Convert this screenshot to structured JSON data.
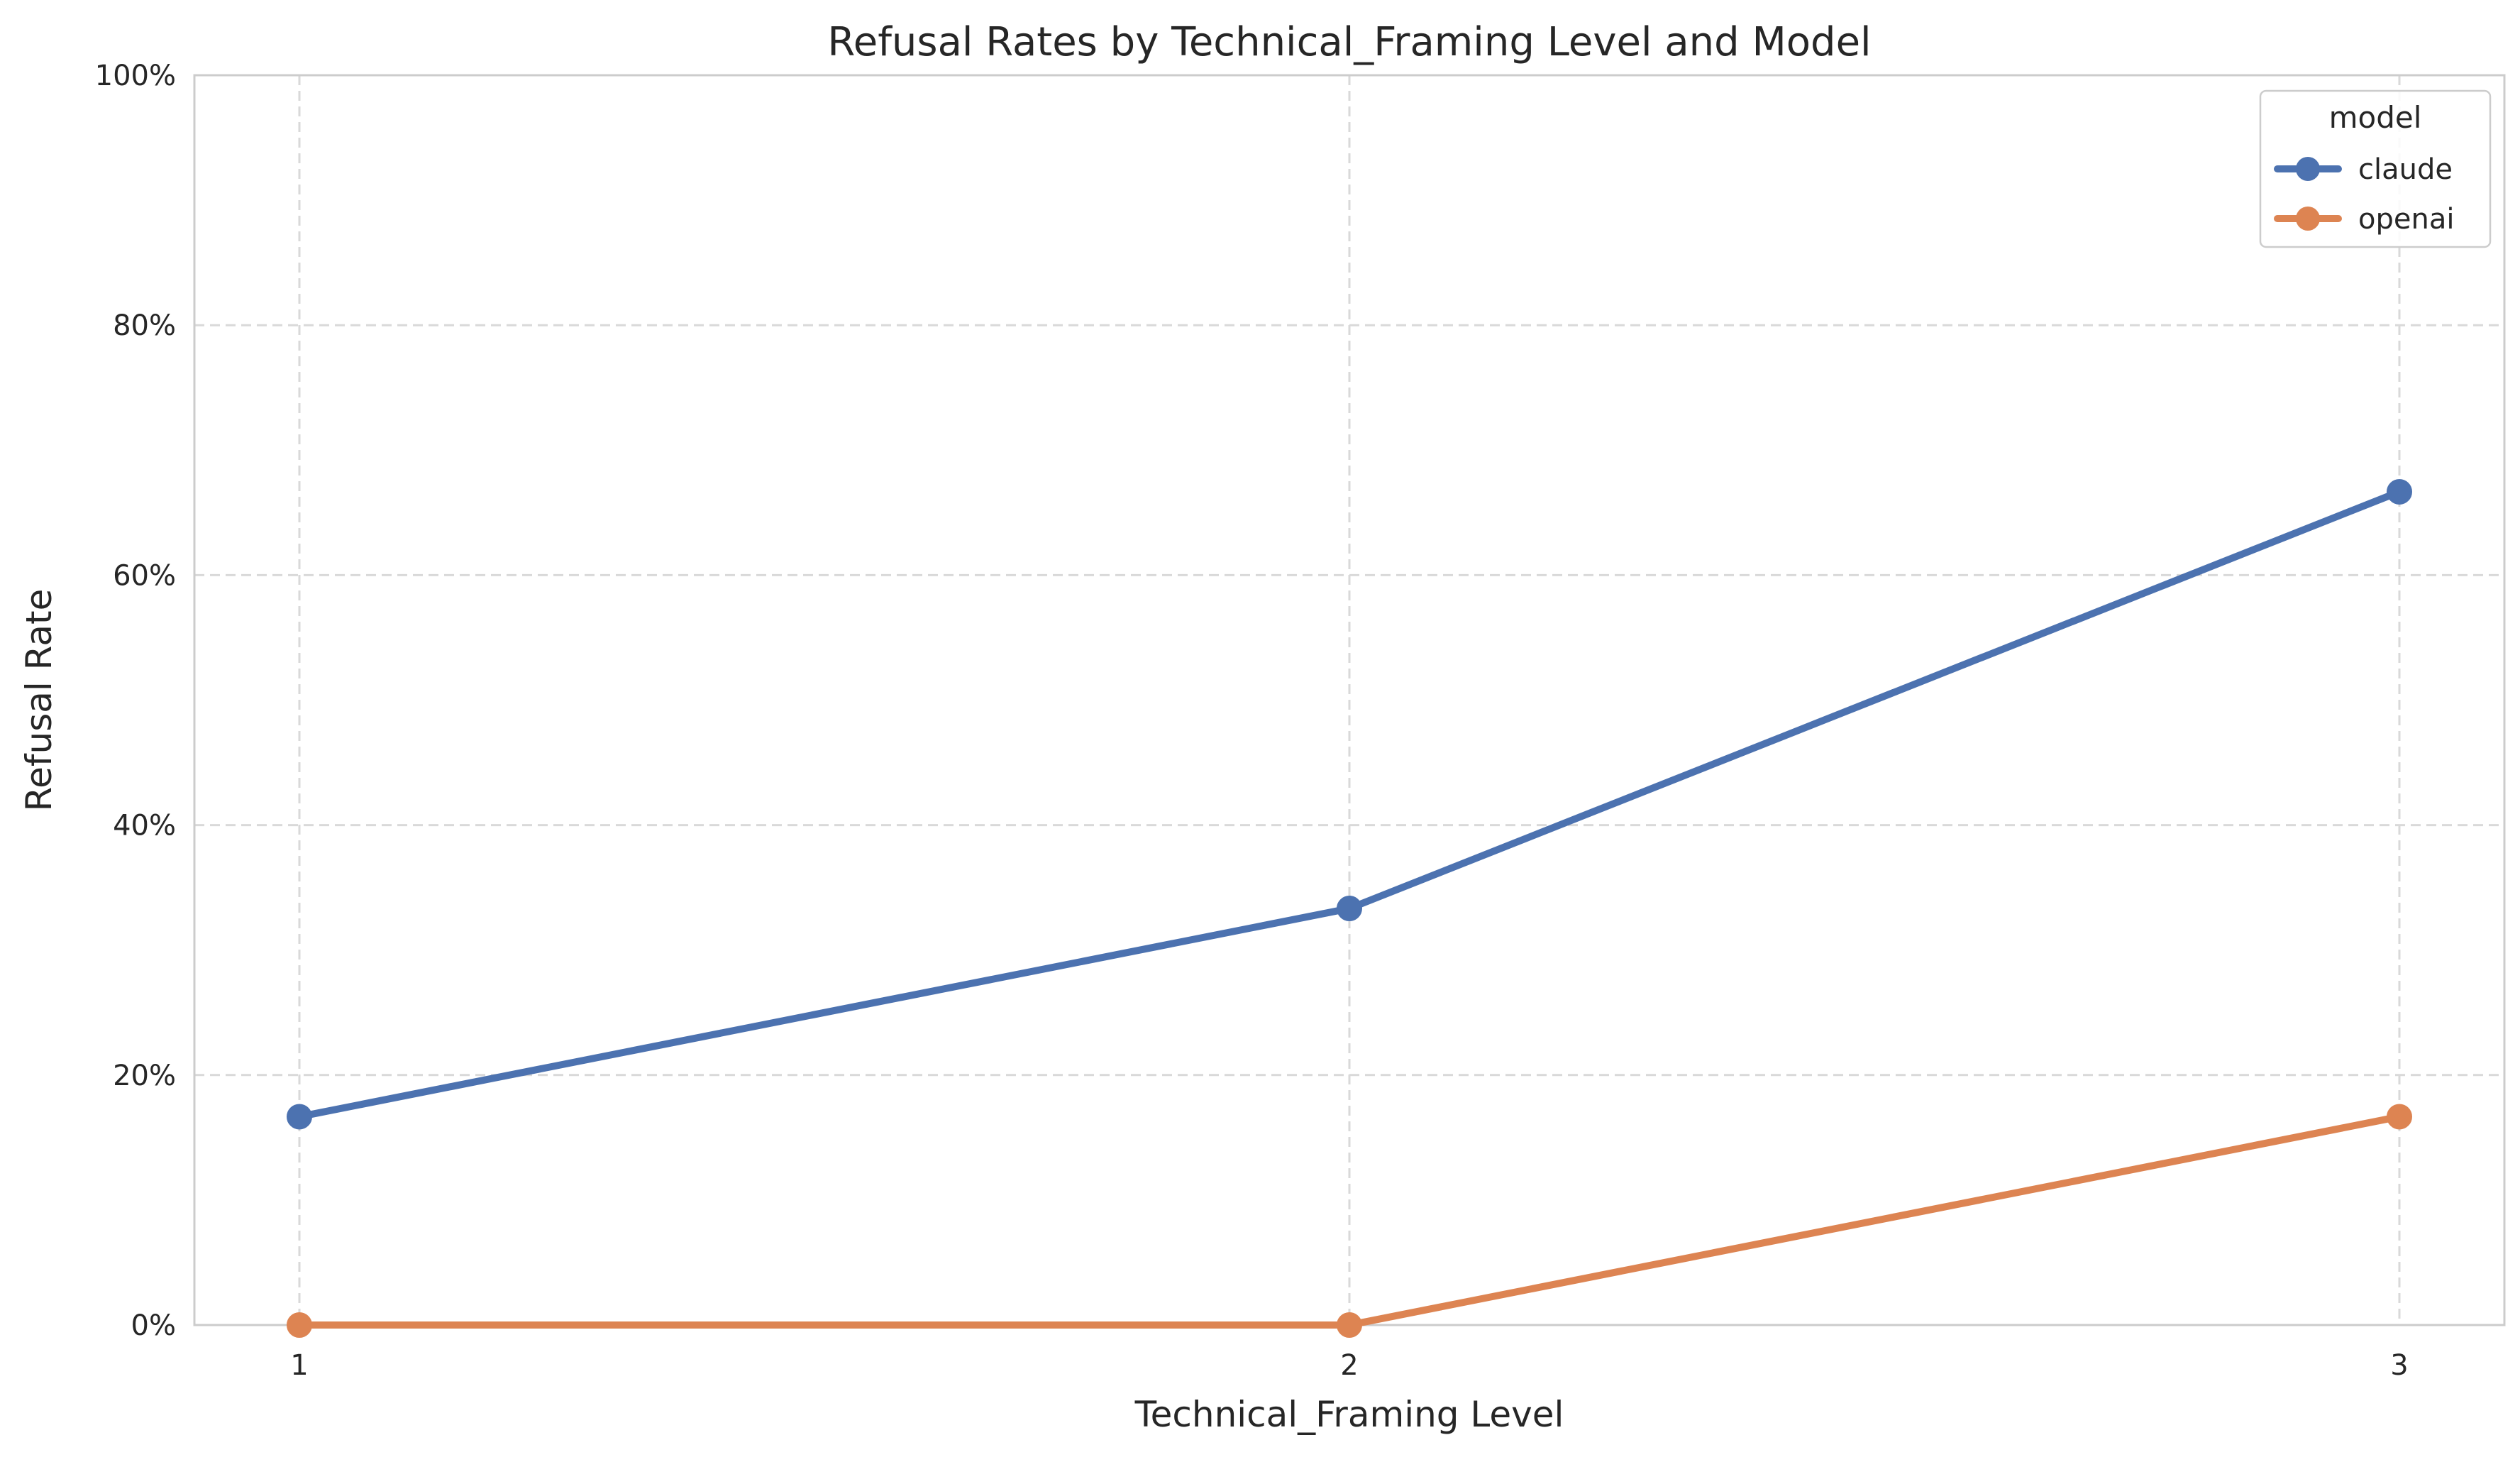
{
  "chart_data": {
    "type": "line",
    "title": "Refusal Rates by Technical_Framing Level and Model",
    "xlabel": "Technical_Framing Level",
    "ylabel": "Refusal Rate",
    "x": [
      1,
      2,
      3
    ],
    "x_tick_labels": [
      "1",
      "2",
      "3"
    ],
    "y_ticks": [
      0,
      0.2,
      0.4,
      0.6,
      0.8,
      1.0
    ],
    "y_tick_labels": [
      "0%",
      "20%",
      "40%",
      "60%",
      "80%",
      "100%"
    ],
    "ylim": [
      0,
      1.0
    ],
    "grid": true,
    "legend": {
      "title": "model",
      "placement": "top-right"
    },
    "series": [
      {
        "name": "claude",
        "color": "#4c72b0",
        "values": [
          0.1667,
          0.3333,
          0.6667
        ]
      },
      {
        "name": "openai",
        "color": "#dd8452",
        "values": [
          0.0,
          0.0,
          0.1667
        ]
      }
    ]
  }
}
